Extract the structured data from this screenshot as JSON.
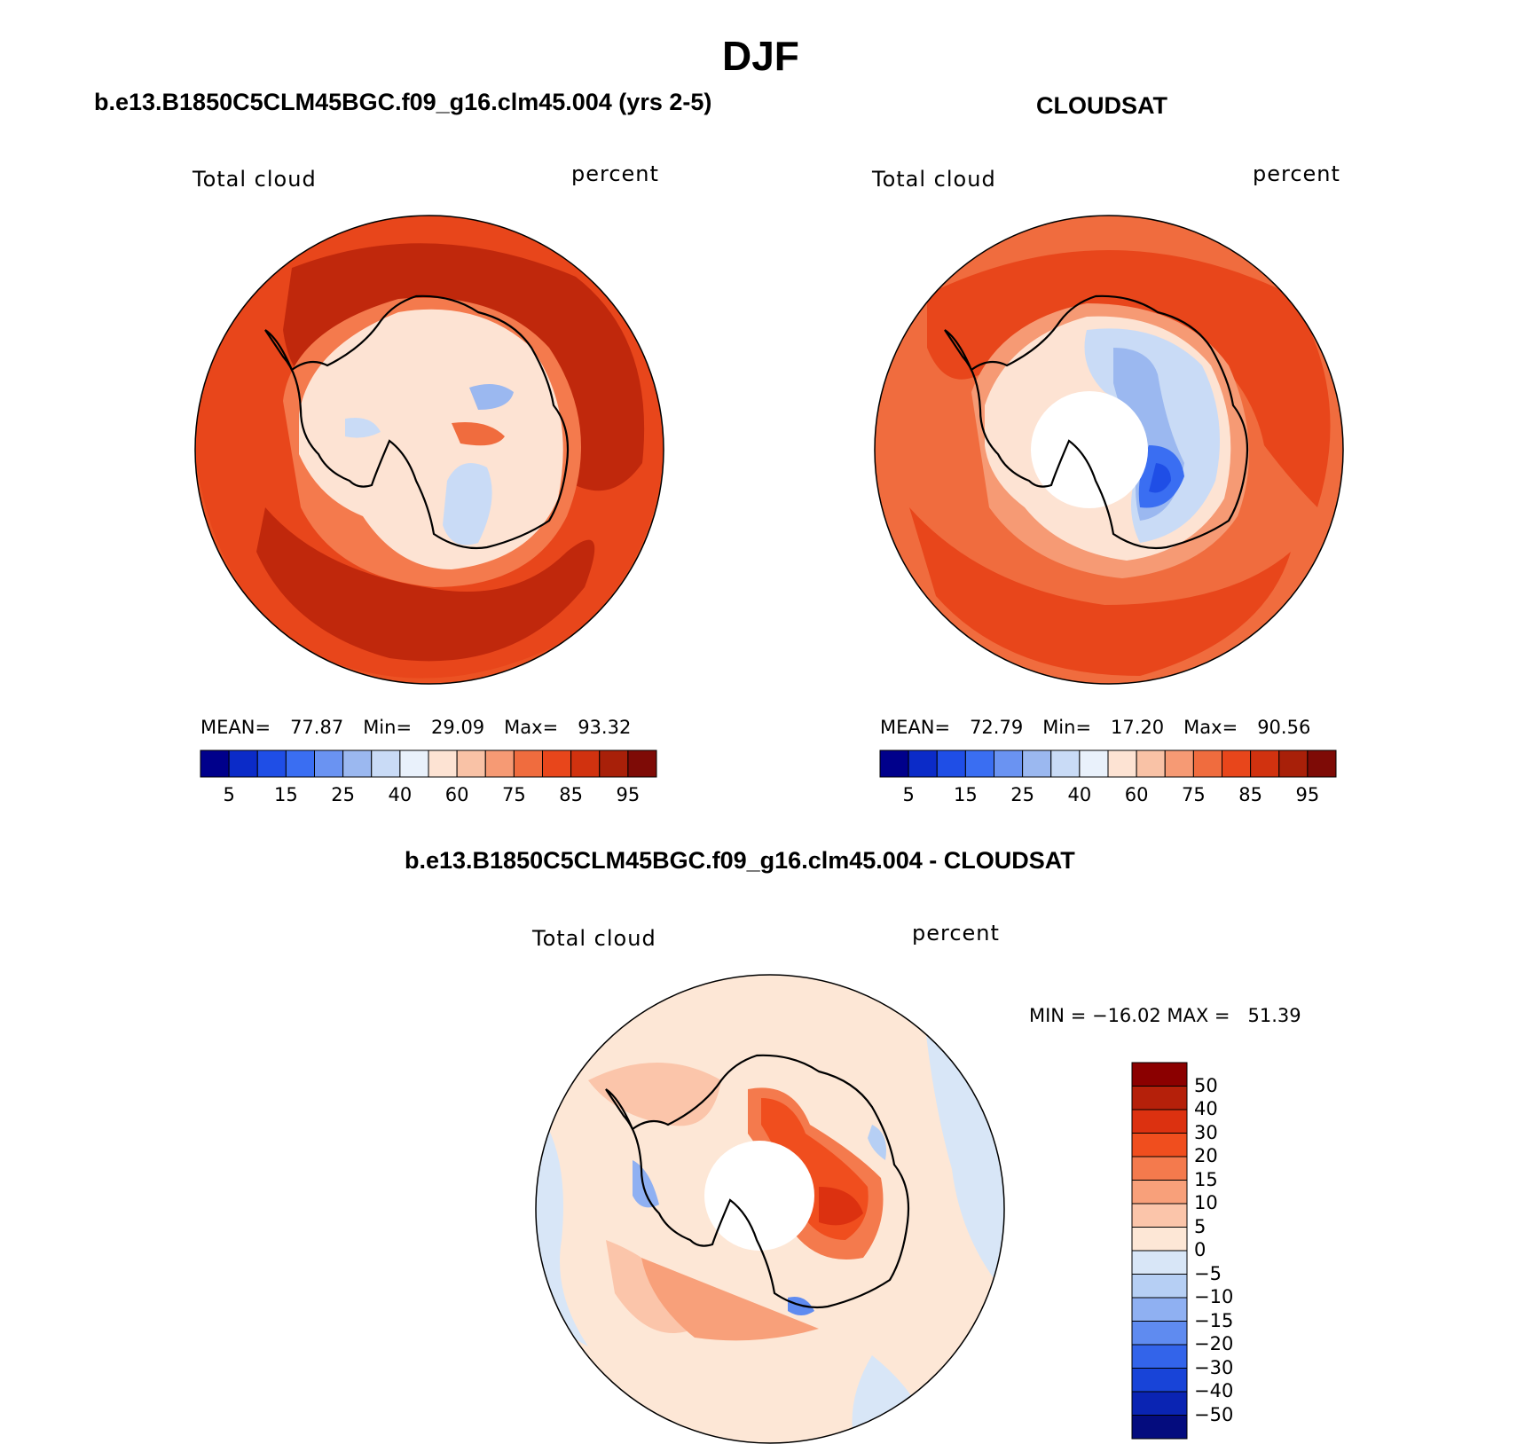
{
  "figure": {
    "title": "DJF",
    "panels": [
      {
        "title": "b.e13.B1850C5CLM45BGC.f09_g16.clm45.004 (yrs 2-5)",
        "left_label": "Total cloud",
        "right_label": "percent",
        "stats": {
          "mean_label": "MEAN=",
          "mean": "77.87",
          "min_label": "Min=",
          "min": "29.09",
          "max_label": "Max=",
          "max": "93.32"
        }
      },
      {
        "title": "CLOUDSAT",
        "left_label": "Total cloud",
        "right_label": "percent",
        "stats": {
          "mean_label": "MEAN=",
          "mean": "72.79",
          "min_label": "Min=",
          "min": "17.20",
          "max_label": "Max=",
          "max": "90.56"
        }
      },
      {
        "title": "b.e13.B1850C5CLM45BGC.f09_g16.clm45.004 - CLOUDSAT",
        "left_label": "Total cloud",
        "right_label": "percent",
        "minmax": "MIN = −16.02 MAX =   51.39"
      }
    ],
    "colorbar_field": {
      "colors": [
        "#00008b",
        "#0b2bc8",
        "#1f4ee6",
        "#3a6ef2",
        "#6a93f2",
        "#9bb8f0",
        "#c9dbf6",
        "#e9f1fb",
        "#fde3d3",
        "#f9c2a6",
        "#f69a74",
        "#f06c3e",
        "#e8461b",
        "#d1320f",
        "#a82009",
        "#7e0b06"
      ],
      "tick_labels": [
        "5",
        "15",
        "25",
        "40",
        "60",
        "75",
        "85",
        "95"
      ],
      "tick_positions": [
        1,
        3,
        5,
        7,
        9,
        11,
        13,
        15
      ]
    },
    "colorbar_diff": {
      "colors": [
        "#8b0000",
        "#b5200a",
        "#dc3110",
        "#f04e1e",
        "#f47a4d",
        "#f8a07a",
        "#fbc5aa",
        "#fde7d6",
        "#d8e6f7",
        "#b6cff4",
        "#8fb0f2",
        "#5f8bf0",
        "#3364ea",
        "#1844d8",
        "#0a24b3",
        "#040c7e"
      ],
      "tick_labels": [
        "50",
        "40",
        "30",
        "20",
        "15",
        "10",
        "5",
        "0",
        "−5",
        "−10",
        "−15",
        "−20",
        "−30",
        "−40",
        "−50"
      ]
    }
  }
}
